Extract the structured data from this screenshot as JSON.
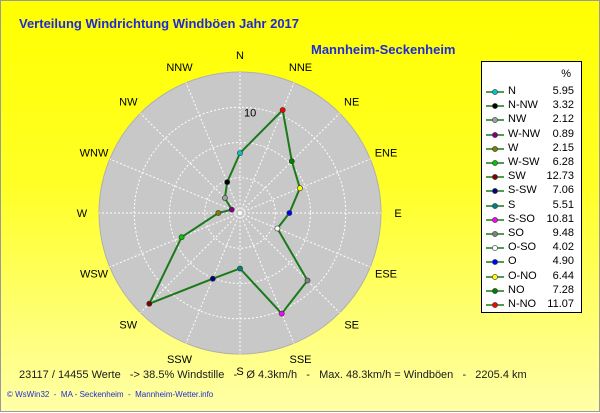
{
  "title": "Verteilung Windrichtung Windböen  Jahr 2017",
  "subtitle": "Mannheim-Seckenheim",
  "stats_line": "23117 / 14455 Werte   -> 38.5% Windstille   -   Ø 4.3km/h   -   Max. 48.3km/h = Windböen   -   2205.4 km",
  "footer": "© WsWin32  -  MA - Seckenheim  -  Mannheim-Wetter.info",
  "legend_header": "%",
  "chart_data": {
    "type": "radar",
    "title": "Verteilung Windrichtung Windböen  Jahr 2017",
    "subtitle": "Mannheim-Seckenheim",
    "unit": "%",
    "rmax": 14,
    "radial_ticks": [
      10
    ],
    "line_color": "#1a7a1a",
    "directions": [
      "N",
      "NNE",
      "NE",
      "ENE",
      "E",
      "ESE",
      "SE",
      "SSE",
      "S",
      "SSW",
      "SW",
      "WSW",
      "W",
      "WNW",
      "NW",
      "NNW"
    ],
    "values": [
      5.95,
      11.07,
      7.28,
      6.44,
      4.9,
      4.02,
      9.48,
      10.81,
      5.51,
      7.06,
      12.73,
      6.28,
      2.15,
      0.89,
      2.12,
      3.32
    ],
    "legend": [
      {
        "name": "N",
        "value": "5.95",
        "color": "#00c8c8"
      },
      {
        "name": "N-NW",
        "value": "3.32",
        "color": "#000000"
      },
      {
        "name": "NW",
        "value": "2.12",
        "color": "#a0a0a0"
      },
      {
        "name": "W-NW",
        "value": "0.89",
        "color": "#800080"
      },
      {
        "name": "W",
        "value": "2.15",
        "color": "#808000"
      },
      {
        "name": "W-SW",
        "value": "6.28",
        "color": "#00c800"
      },
      {
        "name": "SW",
        "value": "12.73",
        "color": "#800000"
      },
      {
        "name": "S-SW",
        "value": "7.06",
        "color": "#000080"
      },
      {
        "name": "S",
        "value": "5.51",
        "color": "#008080"
      },
      {
        "name": "S-SO",
        "value": "10.81",
        "color": "#ff00ff"
      },
      {
        "name": "SO",
        "value": "9.48",
        "color": "#808080"
      },
      {
        "name": "O-SO",
        "value": "4.02",
        "color": "#ffffff"
      },
      {
        "name": "O",
        "value": "4.90",
        "color": "#0000ff"
      },
      {
        "name": "O-NO",
        "value": "6.44",
        "color": "#ffff00"
      },
      {
        "name": "NO",
        "value": "7.28",
        "color": "#008000"
      },
      {
        "name": "N-NO",
        "value": "11.07",
        "color": "#ff0000"
      }
    ],
    "dir_colors": [
      "#00c8c8",
      "#ff0000",
      "#008000",
      "#ffff00",
      "#0000ff",
      "#ffffff",
      "#808080",
      "#ff00ff",
      "#008080",
      "#000080",
      "#800000",
      "#00c800",
      "#808000",
      "#800080",
      "#a0a0a0",
      "#000000"
    ]
  }
}
